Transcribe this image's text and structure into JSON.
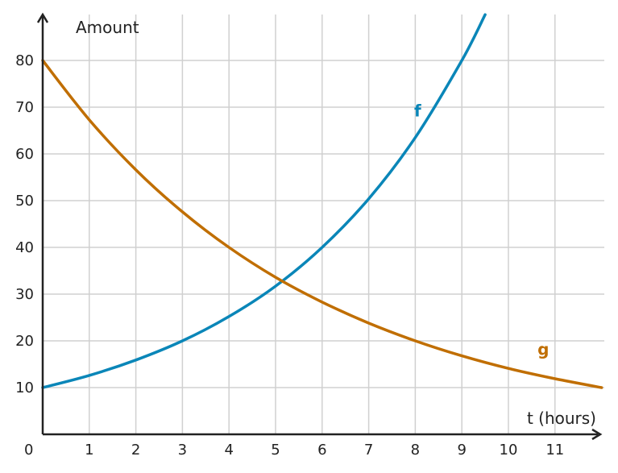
{
  "chart_data": {
    "type": "line",
    "title": "",
    "xlabel": "t (hours)",
    "ylabel": "Amount",
    "origin_label": "0",
    "xlim": [
      0,
      12
    ],
    "ylim": [
      0,
      90
    ],
    "x_ticks": [
      1,
      2,
      3,
      4,
      5,
      6,
      7,
      8,
      9,
      10,
      11
    ],
    "y_ticks": [
      10,
      20,
      30,
      40,
      50,
      60,
      70,
      80
    ],
    "grid": true,
    "series": [
      {
        "name": "f",
        "color": "#0a86b8",
        "x": [
          0,
          1,
          2,
          3,
          4,
          5,
          6,
          7,
          8,
          9,
          9.5
        ],
        "y": [
          10,
          12.6,
          15.9,
          20,
          25.2,
          31.7,
          40,
          50.4,
          63.5,
          80,
          89.8
        ]
      },
      {
        "name": "g",
        "color": "#c06e00",
        "x": [
          0,
          1,
          2,
          3,
          4,
          5,
          6,
          7,
          8,
          9,
          10,
          11,
          12
        ],
        "y": [
          80,
          67.3,
          56.6,
          47.6,
          40,
          33.6,
          28.3,
          23.8,
          20,
          16.8,
          14.1,
          11.9,
          10
        ]
      }
    ]
  }
}
